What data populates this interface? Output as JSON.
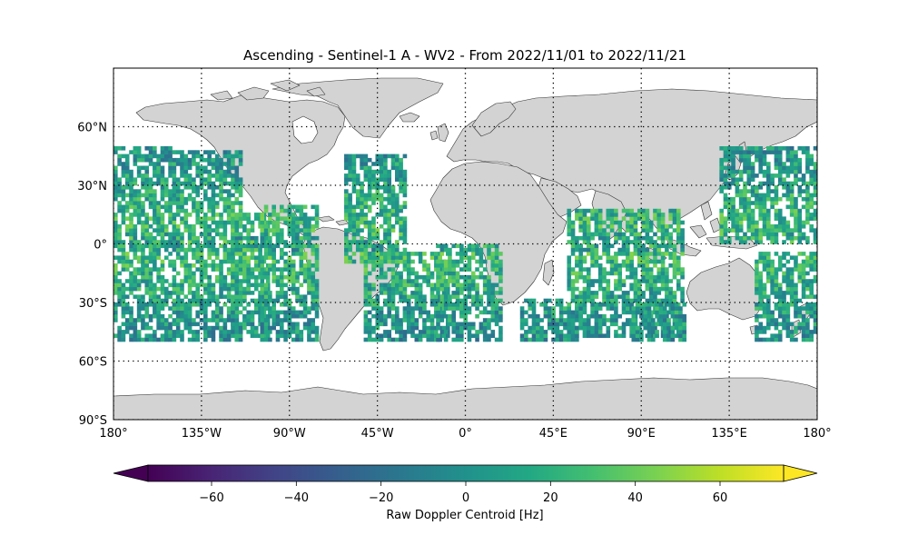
{
  "map": {
    "title": "Ascending - Sentinel-1 A - WV2 - From 2022/11/01 to 2022/11/21",
    "projection": "equirectangular",
    "extent": {
      "lon": [
        -180,
        180
      ],
      "lat": [
        -90,
        90
      ]
    },
    "lat_tick_labels": [
      {
        "lat": 60,
        "label": "60°N"
      },
      {
        "lat": 30,
        "label": "30°N"
      },
      {
        "lat": 0,
        "label": "0°"
      },
      {
        "lat": -30,
        "label": "30°S"
      },
      {
        "lat": -60,
        "label": "60°S"
      },
      {
        "lat": -90,
        "label": "90°S"
      }
    ],
    "lon_tick_labels": [
      {
        "lon": -180,
        "label": "180°"
      },
      {
        "lon": -135,
        "label": "135°W"
      },
      {
        "lon": -90,
        "label": "90°W"
      },
      {
        "lon": -45,
        "label": "45°W"
      },
      {
        "lon": 0,
        "label": "0°"
      },
      {
        "lon": 45,
        "label": "45°E"
      },
      {
        "lon": 90,
        "label": "90°E"
      },
      {
        "lon": 135,
        "label": "135°E"
      },
      {
        "lon": 180,
        "label": "180°"
      }
    ],
    "gridlines": "dotted",
    "land_color": "#d3d3d3",
    "coast_color": "#333333",
    "data_lat_range": [
      -50,
      50
    ],
    "swaths": [
      {
        "region": "central-pacific",
        "lon": [
          -180,
          -150
        ],
        "lat": [
          -50,
          50
        ]
      },
      {
        "region": "central-pacific-east",
        "lon": [
          -150,
          -115
        ],
        "lat": [
          -50,
          48
        ]
      },
      {
        "region": "east-pacific",
        "lon": [
          -120,
          -100
        ],
        "lat": [
          -48,
          15
        ]
      },
      {
        "region": "east-pacific-tracks",
        "lon": [
          -105,
          -75
        ],
        "lat": [
          -50,
          20
        ]
      },
      {
        "region": "north-atlantic",
        "lon": [
          -62,
          -30
        ],
        "lat": [
          -10,
          45
        ]
      },
      {
        "region": "south-atlantic",
        "lon": [
          -52,
          -8
        ],
        "lat": [
          -50,
          -5
        ]
      },
      {
        "region": "south-atlantic-east",
        "lon": [
          -15,
          18
        ],
        "lat": [
          -50,
          0
        ]
      },
      {
        "region": "south-indian-west",
        "lon": [
          28,
          60
        ],
        "lat": [
          -50,
          -28
        ]
      },
      {
        "region": "indian-ocean",
        "lon": [
          52,
          112
        ],
        "lat": [
          -48,
          18
        ]
      },
      {
        "region": "southeast-indian",
        "lon": [
          85,
          112
        ],
        "lat": [
          -50,
          -30
        ]
      },
      {
        "region": "west-pacific",
        "lon": [
          130,
          180
        ],
        "lat": [
          0,
          50
        ]
      },
      {
        "region": "west-pacific-south",
        "lon": [
          148,
          180
        ],
        "lat": [
          -50,
          -5
        ]
      }
    ]
  },
  "colorbar": {
    "label": "Raw Doppler Centroid [Hz]",
    "colormap": "viridis",
    "range": [
      -75,
      75
    ],
    "extend": "both",
    "ticks": [
      {
        "value": -60,
        "label": "−60"
      },
      {
        "value": -40,
        "label": "−40"
      },
      {
        "value": -20,
        "label": "−20"
      },
      {
        "value": 0,
        "label": "0"
      },
      {
        "value": 20,
        "label": "20"
      },
      {
        "value": 40,
        "label": "40"
      },
      {
        "value": 60,
        "label": "60"
      }
    ]
  }
}
